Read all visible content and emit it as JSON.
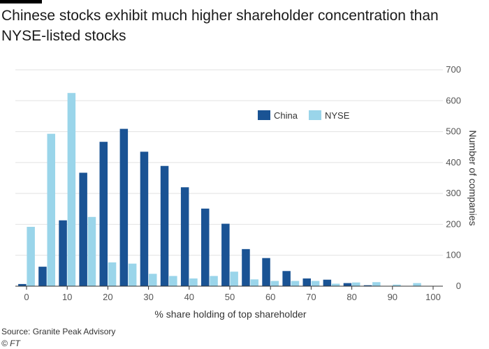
{
  "title": "Chinese stocks exhibit much higher shareholder concentration than NYSE-listed stocks",
  "source": "Source: Granite Peak Advisory",
  "credit": "© FT",
  "colors": {
    "china": "#1a5394",
    "nyse": "#9ad5ea",
    "grid": "#e2e2e2",
    "axis": "#555555"
  },
  "chart_data": {
    "type": "bar",
    "title": "Chinese stocks exhibit much higher shareholder concentration than NYSE-listed stocks",
    "xlabel": "% share holding of top shareholder",
    "ylabel": "Number of companies",
    "x_ticks": [
      0,
      10,
      20,
      30,
      40,
      50,
      60,
      70,
      80,
      90,
      100
    ],
    "y_ticks": [
      0,
      100,
      200,
      300,
      400,
      500,
      600,
      700
    ],
    "xlim": [
      0,
      100
    ],
    "ylim": [
      0,
      700
    ],
    "y_axis_side": "right",
    "grid": true,
    "legend_position": "upper-center",
    "categories": [
      0,
      5,
      10,
      15,
      20,
      25,
      30,
      35,
      40,
      45,
      50,
      55,
      60,
      65,
      70,
      75,
      80,
      85,
      90,
      95
    ],
    "series": [
      {
        "name": "China",
        "values": [
          7,
          63,
          213,
          367,
          467,
          509,
          435,
          389,
          320,
          251,
          202,
          120,
          91,
          49,
          25,
          21,
          10,
          3,
          0,
          0
        ]
      },
      {
        "name": "NYSE",
        "values": [
          192,
          493,
          625,
          224,
          77,
          73,
          40,
          33,
          25,
          33,
          47,
          22,
          17,
          17,
          17,
          8,
          12,
          13,
          5,
          10
        ]
      }
    ]
  }
}
